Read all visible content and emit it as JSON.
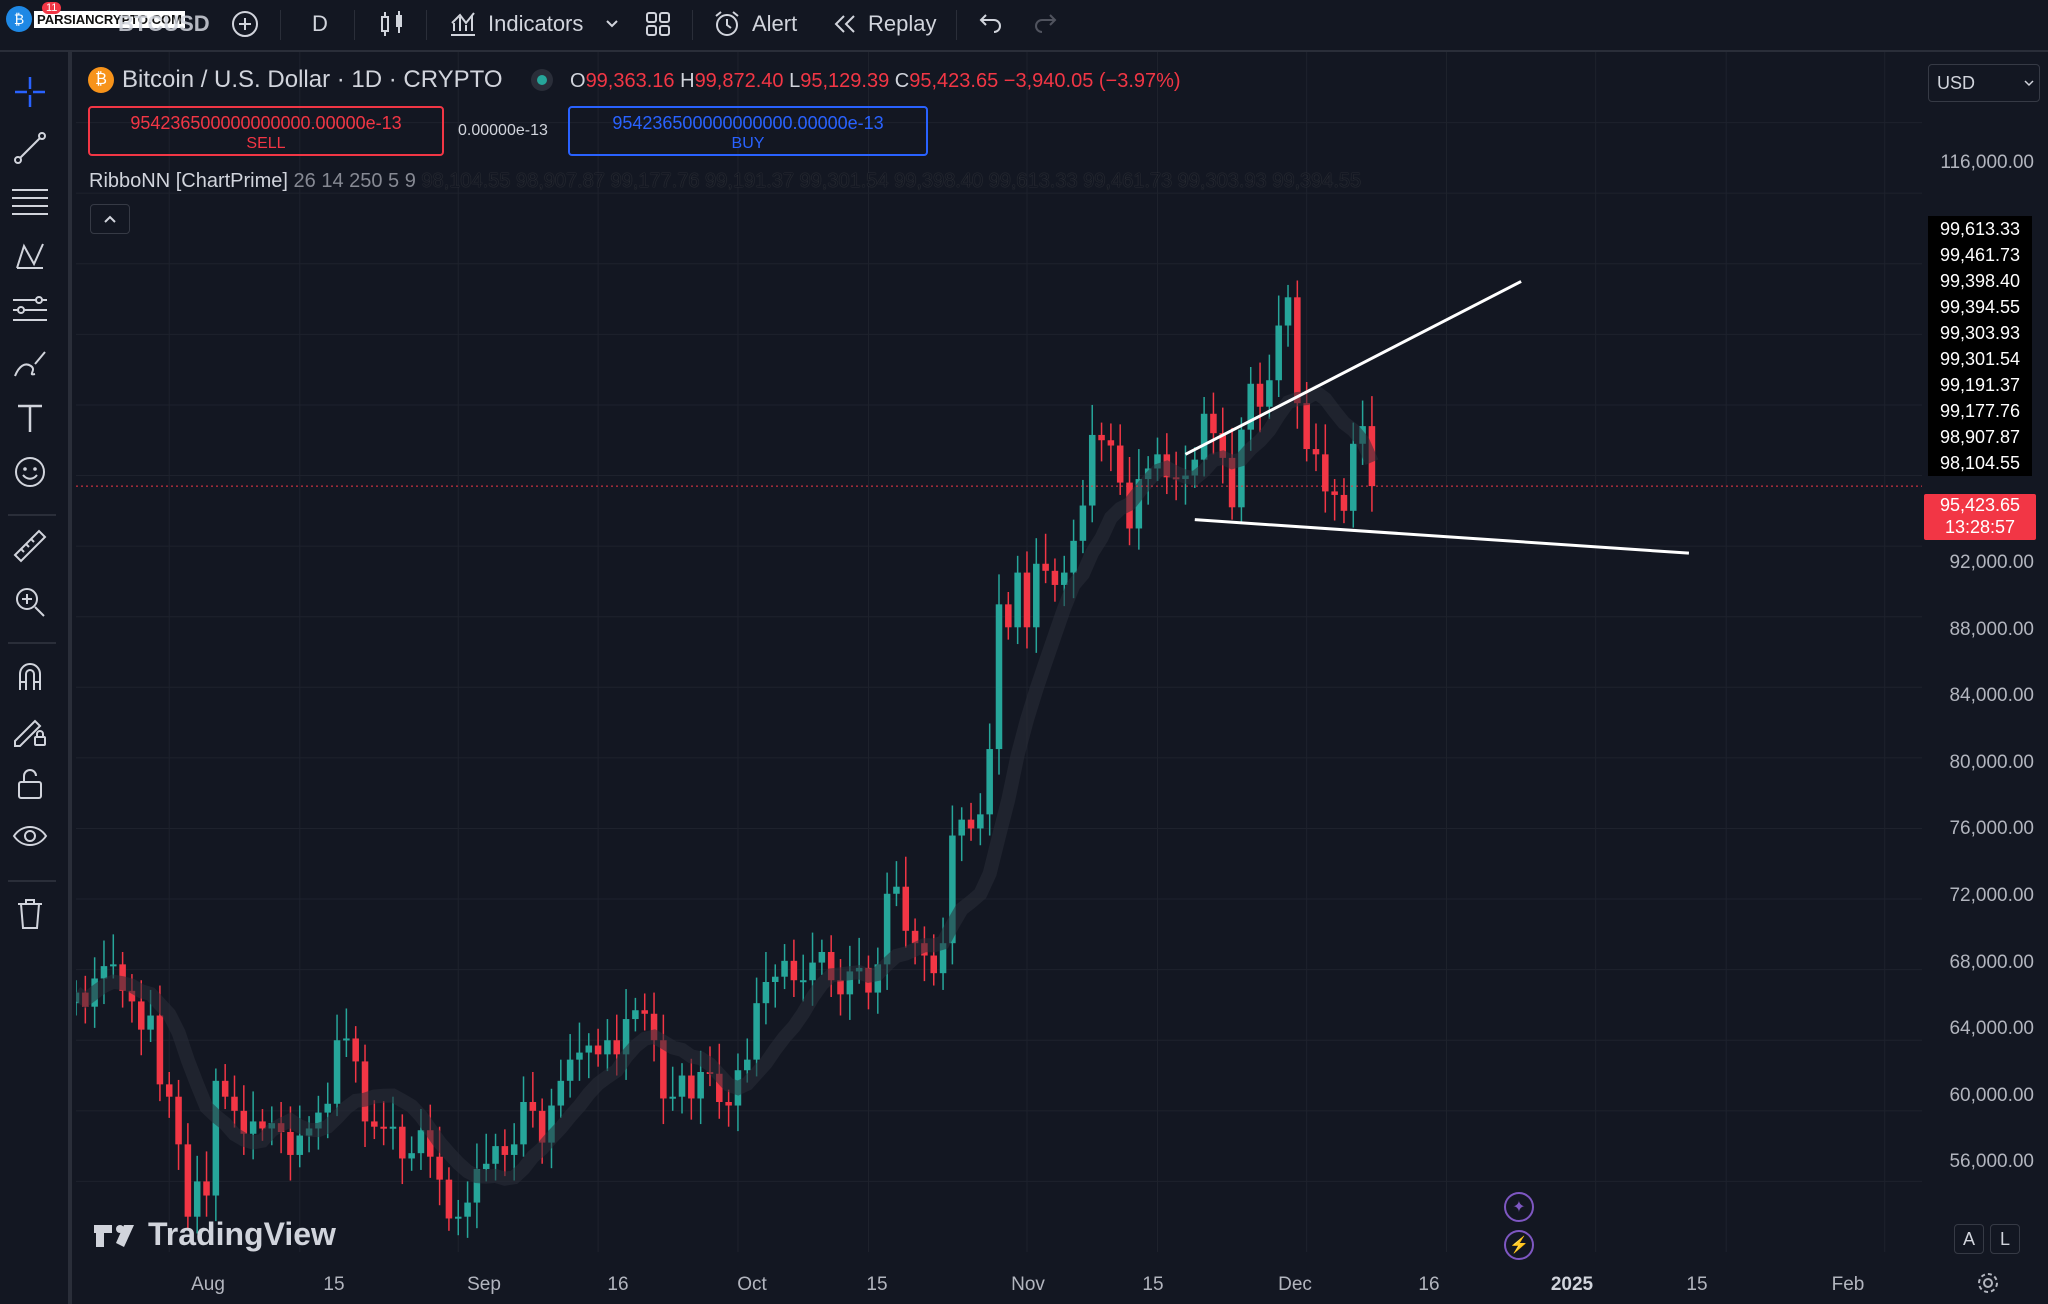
{
  "topbar": {
    "logo_text": "PARSIANCRYPTO.COM",
    "badge": "11",
    "symbol": "BTCUSD",
    "interval": "D",
    "indicators_label": "Indicators",
    "alert_label": "Alert",
    "replay_label": "Replay"
  },
  "legend": {
    "title": "Bitcoin / U.S. Dollar · 1D · CRYPTO",
    "o_key": "O",
    "o_val": "99,363.16",
    "h_key": "H",
    "h_val": "99,872.40",
    "l_key": "L",
    "l_val": "95,129.39",
    "c_key": "C",
    "c_val": "95,423.65",
    "change": "−3,940.05 (−3.97%)"
  },
  "trade": {
    "sell_value": "954236500000000000.00000e-13",
    "sell_label": "SELL",
    "spread": "0.00000e-13",
    "buy_value": "954236500000000000.00000e-13",
    "buy_label": "BUY"
  },
  "indicator": {
    "name": "RibboNN [ChartPrime]",
    "params": "26 14 250 5 9",
    "values": "98,104.55 98,907.87 99,177.76 99,191.37 99,301.54 99,398.40 99,613.33 99,461.73 99,303.93 99,394.55"
  },
  "currency": "USD",
  "price_axis": [
    "116,000.00",
    "92,000.00",
    "88,000.00",
    "84,000.00",
    "80,000.00",
    "76,000.00",
    "72,000.00",
    "68,000.00",
    "64,000.00",
    "60,000.00",
    "56,000.00"
  ],
  "ribbon_labels": [
    "99,613.33",
    "99,461.73",
    "99,398.40",
    "99,394.55",
    "99,303.93",
    "99,301.54",
    "99,191.37",
    "99,177.76",
    "98,907.87",
    "98,104.55"
  ],
  "current_price": {
    "value": "95,423.65",
    "countdown": "13:28:57"
  },
  "time_axis": [
    "Aug",
    "15",
    "Sep",
    "16",
    "Oct",
    "15",
    "Nov",
    "15",
    "Dec",
    "16",
    "2025",
    "15",
    "Feb"
  ],
  "watermark": "TradingView",
  "scale_buttons": {
    "auto": "A",
    "log": "L"
  },
  "colors": {
    "bg": "#131722",
    "up": "#26a69a",
    "down": "#f23645",
    "accent": "#2962ff"
  },
  "chart_data": {
    "type": "candlestick",
    "ylim": [
      52000,
      120000
    ],
    "x_range": [
      "2024-07-22",
      "2025-02-05"
    ],
    "closes_start": "2024-07-22",
    "closes": [
      66700,
      65900,
      67500,
      68200,
      68300,
      66800,
      66200,
      64600,
      65400,
      61500,
      60800,
      58100,
      54000,
      56000,
      55200,
      61700,
      60800,
      60000,
      58700,
      59400,
      59000,
      59300,
      58800,
      57500,
      58600,
      59000,
      59900,
      60400,
      64000,
      64100,
      62800,
      59400,
      59100,
      59000,
      59100,
      57300,
      57600,
      58900,
      57400,
      56100,
      53900,
      54000,
      54800,
      56700,
      57000,
      58000,
      57500,
      58100,
      60500,
      60000,
      58200,
      60300,
      61700,
      62900,
      63300,
      63700,
      63200,
      64000,
      63200,
      65200,
      65700,
      65500,
      64000,
      60700,
      60800,
      62000,
      60700,
      62200,
      62100,
      60500,
      60300,
      62300,
      62900,
      66100,
      67300,
      67600,
      68500,
      67400,
      67400,
      68400,
      69000,
      67400,
      66600,
      67900,
      68100,
      66700,
      68300,
      72300,
      72700,
      70200,
      69500,
      68800,
      67800,
      69500,
      75600,
      76500,
      76000,
      76800,
      80500,
      88700,
      87400,
      90500,
      87400,
      91000,
      90600,
      89800,
      90500,
      92300,
      94300,
      98300,
      98000,
      97700,
      95600,
      93000,
      95800,
      96400,
      97200,
      95900,
      95800,
      96000,
      96900,
      99500,
      98400,
      97000,
      94200,
      98600,
      101200,
      99900,
      101400,
      104500,
      106100,
      100100,
      97500,
      97200,
      95100,
      94900,
      94000,
      97800,
      98800,
      95400
    ]
  },
  "trendlines": [
    {
      "name": "upper",
      "from": [
        "2024-11-18",
        97200
      ],
      "to": [
        "2024-12-24",
        107000
      ]
    },
    {
      "name": "lower",
      "from": [
        "2024-11-19",
        93500
      ],
      "to": [
        "2025-01-11",
        91600
      ]
    }
  ]
}
